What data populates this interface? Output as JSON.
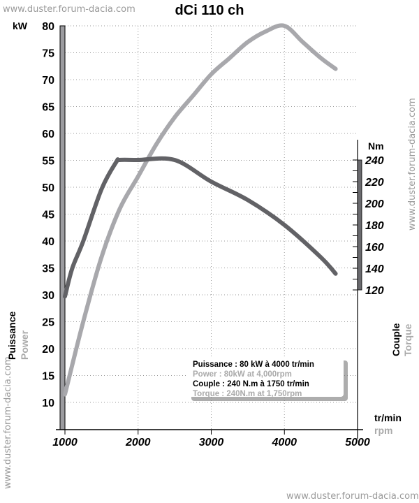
{
  "chart_data": {
    "type": "line",
    "title": "dCi 110 ch",
    "watermark": "www.duster.forum-dacia.com",
    "xlabel": "tr/min",
    "xlabel_en": "rpm",
    "ylabel_left": "kW",
    "ylabel_left_fr": "Puissance",
    "ylabel_left_en": "Power",
    "ylabel_right": "Nm",
    "ylabel_right_fr": "Couple",
    "ylabel_right_en": "Torque",
    "xlim": [
      1000,
      5000
    ],
    "xticks": [
      "1000",
      "2000",
      "3000",
      "4000",
      "5000"
    ],
    "ylim_left": [
      5,
      80
    ],
    "yticks_left": [
      "80",
      "75",
      "70",
      "65",
      "60",
      "55",
      "50",
      "45",
      "40",
      "35",
      "30",
      "25",
      "20",
      "15",
      "10"
    ],
    "ylim_right": [
      120,
      240
    ],
    "yticks_right": [
      "240",
      "220",
      "200",
      "180",
      "160",
      "140",
      "120"
    ],
    "grid": true,
    "colors": {
      "power": "#a8a8ac",
      "torque": "#626266",
      "axis_bar": "#9c9ca0"
    },
    "series": [
      {
        "name": "Power",
        "axis": "left",
        "x": [
          1000,
          1250,
          1500,
          1750,
          2000,
          2250,
          2500,
          2750,
          3000,
          3250,
          3500,
          3750,
          4000,
          4250,
          4500,
          4700
        ],
        "values": [
          11.5,
          25,
          37,
          46,
          52,
          58,
          63,
          67,
          71,
          74,
          77,
          79,
          80,
          77,
          74,
          72
        ]
      },
      {
        "name": "Torque",
        "axis": "right",
        "x": [
          1000,
          1100,
          1250,
          1500,
          1700,
          1750,
          2000,
          2500,
          3000,
          3500,
          4000,
          4500,
          4700
        ],
        "values": [
          114,
          140,
          165,
          213,
          238,
          240,
          240,
          240,
          220,
          203,
          180,
          150,
          135
        ]
      }
    ],
    "legend": {
      "position": "bottom-right",
      "lines": [
        "Puissance : 80 kW à 4000 tr/min",
        "Power : 80kW at 4,000rpm",
        "Couple : 240 N.m à 1750 tr/min",
        "Torque : 240N.m at 1,750rpm"
      ]
    }
  }
}
